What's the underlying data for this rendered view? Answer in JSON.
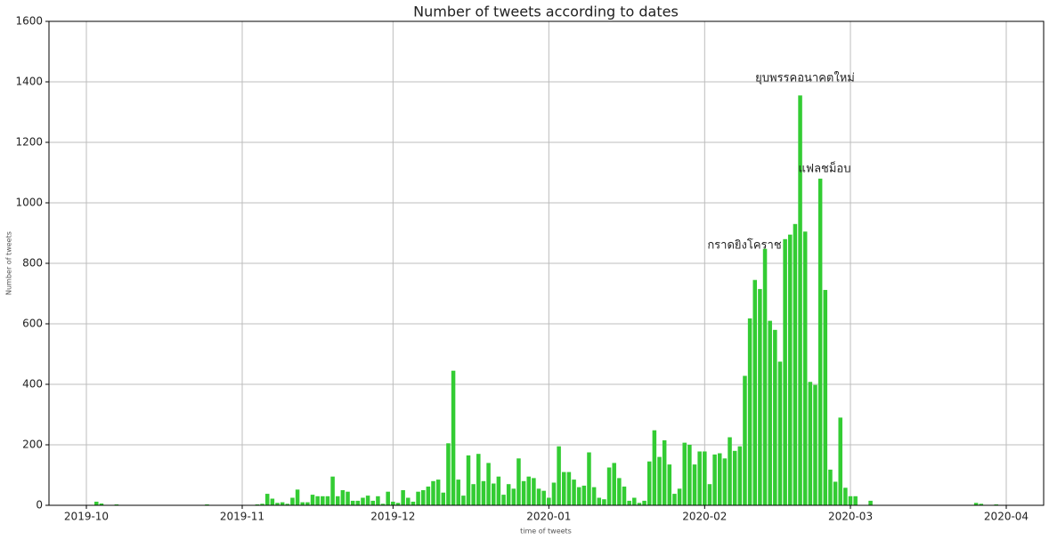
{
  "chart_data": {
    "type": "bar",
    "title": "Number of tweets according to dates",
    "x_label": "time of tweets",
    "y_label": "Number of tweets",
    "color": "#33cc33",
    "grid": true,
    "ylim": [
      0,
      1600
    ],
    "yticks": [
      0,
      200,
      400,
      600,
      800,
      1000,
      1200,
      1400,
      1600
    ],
    "annotations": [
      "กราดยิงโคราช",
      "แฟลชม็อบ",
      "ยุบพรรคอนาคตใหม่"
    ],
    "categories": [
      "2019-10",
      null,
      null,
      null,
      null,
      null,
      null,
      null,
      null,
      null,
      null,
      null,
      null,
      null,
      null,
      null,
      null,
      null,
      null,
      null,
      null,
      null,
      null,
      null,
      null,
      null,
      null,
      null,
      null,
      null,
      null,
      "2019-11",
      null,
      null,
      null,
      null,
      null,
      null,
      null,
      null,
      null,
      null,
      null,
      null,
      null,
      null,
      null,
      null,
      null,
      null,
      null,
      null,
      null,
      null,
      null,
      null,
      null,
      null,
      null,
      null,
      null,
      "2019-12",
      null,
      null,
      null,
      null,
      null,
      null,
      null,
      null,
      null,
      null,
      null,
      null,
      null,
      null,
      null,
      null,
      null,
      null,
      null,
      null,
      null,
      null,
      null,
      null,
      null,
      null,
      null,
      null,
      null,
      null,
      "2020-01",
      null,
      null,
      null,
      null,
      null,
      null,
      null,
      null,
      null,
      null,
      null,
      null,
      null,
      null,
      null,
      null,
      null,
      null,
      null,
      null,
      null,
      null,
      null,
      null,
      null,
      null,
      null,
      null,
      null,
      null,
      "2020-02",
      null,
      null,
      null,
      null,
      null,
      null,
      null,
      null,
      null,
      null,
      null,
      null,
      null,
      null,
      null,
      null,
      null,
      null,
      null,
      null,
      null,
      null,
      null,
      null,
      null,
      null,
      null,
      null,
      "2020-03",
      null,
      null,
      null,
      null,
      null,
      null,
      null,
      null,
      null,
      null,
      null,
      null,
      null,
      null,
      null,
      null,
      null,
      null,
      null,
      null,
      null,
      null,
      null,
      null,
      null,
      null,
      null,
      null,
      null,
      null,
      "2020-04"
    ],
    "values": [
      0,
      0,
      12,
      6,
      0,
      0,
      3,
      0,
      0,
      0,
      0,
      0,
      0,
      0,
      0,
      0,
      0,
      0,
      0,
      0,
      0,
      0,
      0,
      0,
      3,
      0,
      0,
      0,
      0,
      0,
      0,
      0,
      0,
      0,
      3,
      5,
      38,
      22,
      8,
      10,
      5,
      25,
      52,
      10,
      10,
      35,
      30,
      30,
      30,
      95,
      30,
      50,
      45,
      15,
      15,
      25,
      32,
      15,
      30,
      5,
      45,
      12,
      8,
      50,
      25,
      12,
      45,
      50,
      62,
      80,
      85,
      42,
      205,
      445,
      85,
      32,
      165,
      70,
      170,
      80,
      140,
      72,
      95,
      35,
      70,
      55,
      155,
      80,
      95,
      90,
      55,
      48,
      25,
      75,
      195,
      110,
      110,
      85,
      60,
      65,
      175,
      60,
      25,
      20,
      125,
      140,
      90,
      62,
      15,
      25,
      8,
      15,
      145,
      248,
      160,
      215,
      135,
      38,
      55,
      207,
      200,
      135,
      178,
      178,
      70,
      168,
      172,
      155,
      225,
      180,
      195,
      428,
      618,
      745,
      715,
      848,
      610,
      580,
      475,
      880,
      895,
      930,
      1355,
      905,
      408,
      398,
      1080,
      712,
      118,
      78,
      290,
      58,
      30,
      30,
      0,
      0,
      15,
      0,
      0,
      0,
      0,
      0,
      0,
      0,
      0,
      0,
      0,
      0,
      0,
      0,
      0,
      0,
      0,
      0,
      0,
      0,
      0,
      8,
      5,
      0,
      0,
      3,
      0,
      0
    ]
  }
}
